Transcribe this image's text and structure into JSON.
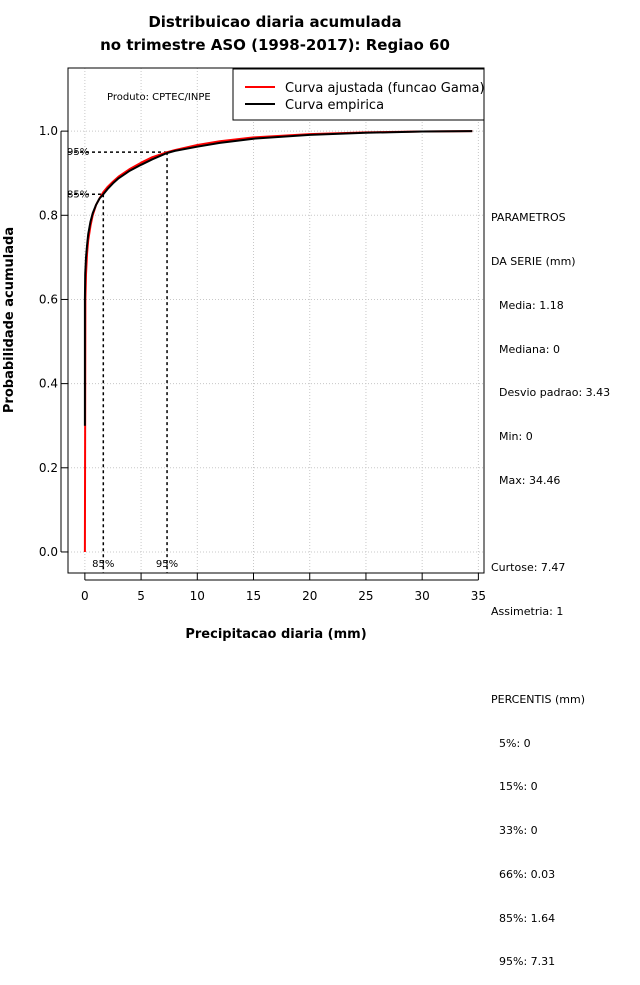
{
  "chart_data": {
    "type": "line",
    "title": "Distribuicao diaria acumulada",
    "subtitle": "no trimestre ASO (1998-2017): Regiao 60",
    "xlabel": "Precipitacao diaria (mm)",
    "ylabel": "Probabilidade acumulada",
    "xlim": [
      -1.5,
      35.5
    ],
    "ylim": [
      -0.05,
      1.15
    ],
    "x_ticks": [
      "0",
      "5",
      "10",
      "15",
      "20",
      "25",
      "30",
      "35"
    ],
    "y_ticks": [
      "0.0",
      "0.2",
      "0.4",
      "0.6",
      "0.8",
      "1.0"
    ],
    "grid": true,
    "legend_position": "top-right",
    "product_label": "Produto: CPTEC/INPE",
    "series": [
      {
        "name": "Curva ajustada (funcao Gama)",
        "color": "#ff0000",
        "x": [
          0.0,
          0.05,
          0.1,
          0.2,
          0.3,
          0.5,
          0.7,
          1.0,
          1.3,
          1.64,
          2.0,
          2.5,
          3.0,
          4.0,
          5.0,
          6.0,
          7.31,
          8.0,
          10.0,
          12.0,
          15.0,
          20.0,
          25.0,
          30.0,
          34.46
        ],
        "y": [
          0.0,
          0.6,
          0.66,
          0.71,
          0.74,
          0.775,
          0.8,
          0.825,
          0.84,
          0.855,
          0.867,
          0.88,
          0.892,
          0.91,
          0.925,
          0.938,
          0.95,
          0.955,
          0.967,
          0.976,
          0.985,
          0.993,
          0.997,
          0.999,
          1.0
        ]
      },
      {
        "name": "Curva empirica",
        "color": "#000000",
        "x": [
          0.0,
          0.0,
          0.03,
          0.1,
          0.2,
          0.3,
          0.5,
          0.7,
          1.0,
          1.3,
          1.64,
          2.0,
          2.5,
          3.0,
          4.0,
          5.0,
          6.0,
          7.31,
          8.0,
          10.0,
          12.0,
          15.0,
          20.0,
          25.0,
          30.0,
          34.46
        ],
        "y": [
          0.3,
          0.6,
          0.66,
          0.7,
          0.73,
          0.755,
          0.785,
          0.805,
          0.825,
          0.84,
          0.85,
          0.862,
          0.876,
          0.888,
          0.906,
          0.92,
          0.933,
          0.948,
          0.953,
          0.963,
          0.972,
          0.982,
          0.991,
          0.996,
          0.999,
          1.0
        ]
      }
    ],
    "reference_markers": [
      {
        "label": "85%",
        "x": 1.64,
        "y": 0.85
      },
      {
        "label": "95%",
        "x": 7.31,
        "y": 0.95
      }
    ]
  },
  "stats_panel": {
    "heading_1": "PARAMETROS",
    "heading_2": "DA SERIE (mm)",
    "media": "Media: 1.18",
    "mediana": "Mediana: 0",
    "desvio": "Desvio padrao: 3.43",
    "min": "Min: 0",
    "max": "Max: 34.46",
    "curtose": "Curtose: 7.47",
    "assimetria": "Assimetria: 1",
    "percentis_heading": "PERCENTIS (mm)",
    "p5": "5%: 0",
    "p15": "15%: 0",
    "p33": "33%: 0",
    "p66": "66%: 0.03",
    "p85": "85%: 1.64",
    "p95": "95%: 7.31"
  }
}
